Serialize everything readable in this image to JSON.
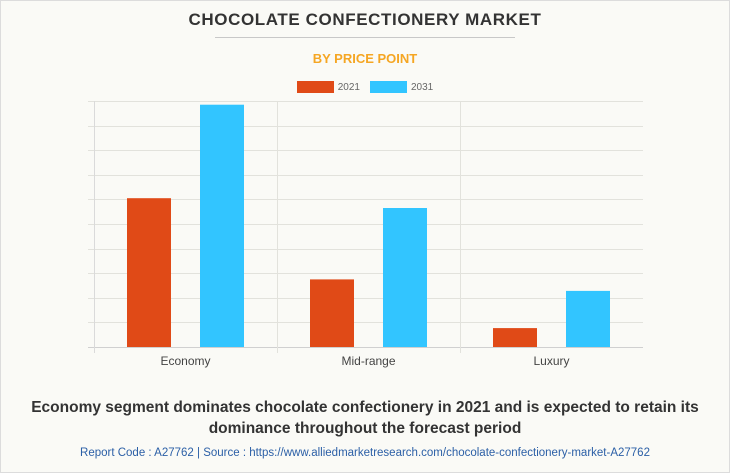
{
  "chart_data": {
    "type": "bar",
    "title": "CHOCOLATE CONFECTIONERY MARKET",
    "subtitle": "BY PRICE POINT",
    "xlabel": "",
    "ylabel": "",
    "categories": [
      "Economy",
      "Mid-range",
      "Luxury"
    ],
    "series": [
      {
        "name": "2021",
        "color": "#e04a17",
        "values": [
          6.05,
          2.75,
          0.77
        ]
      },
      {
        "name": "2031",
        "color": "#32c5ff",
        "values": [
          9.85,
          5.65,
          2.28
        ]
      }
    ],
    "ylim": [
      0,
      10
    ],
    "y_ticks_shown": false,
    "grid": true,
    "legend_position": "top-center",
    "value_note": "No y-axis tick labels shown; values in relative gridline units (10 intervals)."
  },
  "footer": {
    "headline": "Economy segment dominates chocolate confectionery in 2021 and is expected to retain its dominance throughout the forecast period",
    "source": "Report Code : A27762  |  Source : https://www.alliedmarketresearch.com/chocolate-confectionery-market-A27762"
  },
  "colors": {
    "title": "#333333",
    "subtitle": "#f5a623",
    "source_link": "#2b5fa6"
  }
}
